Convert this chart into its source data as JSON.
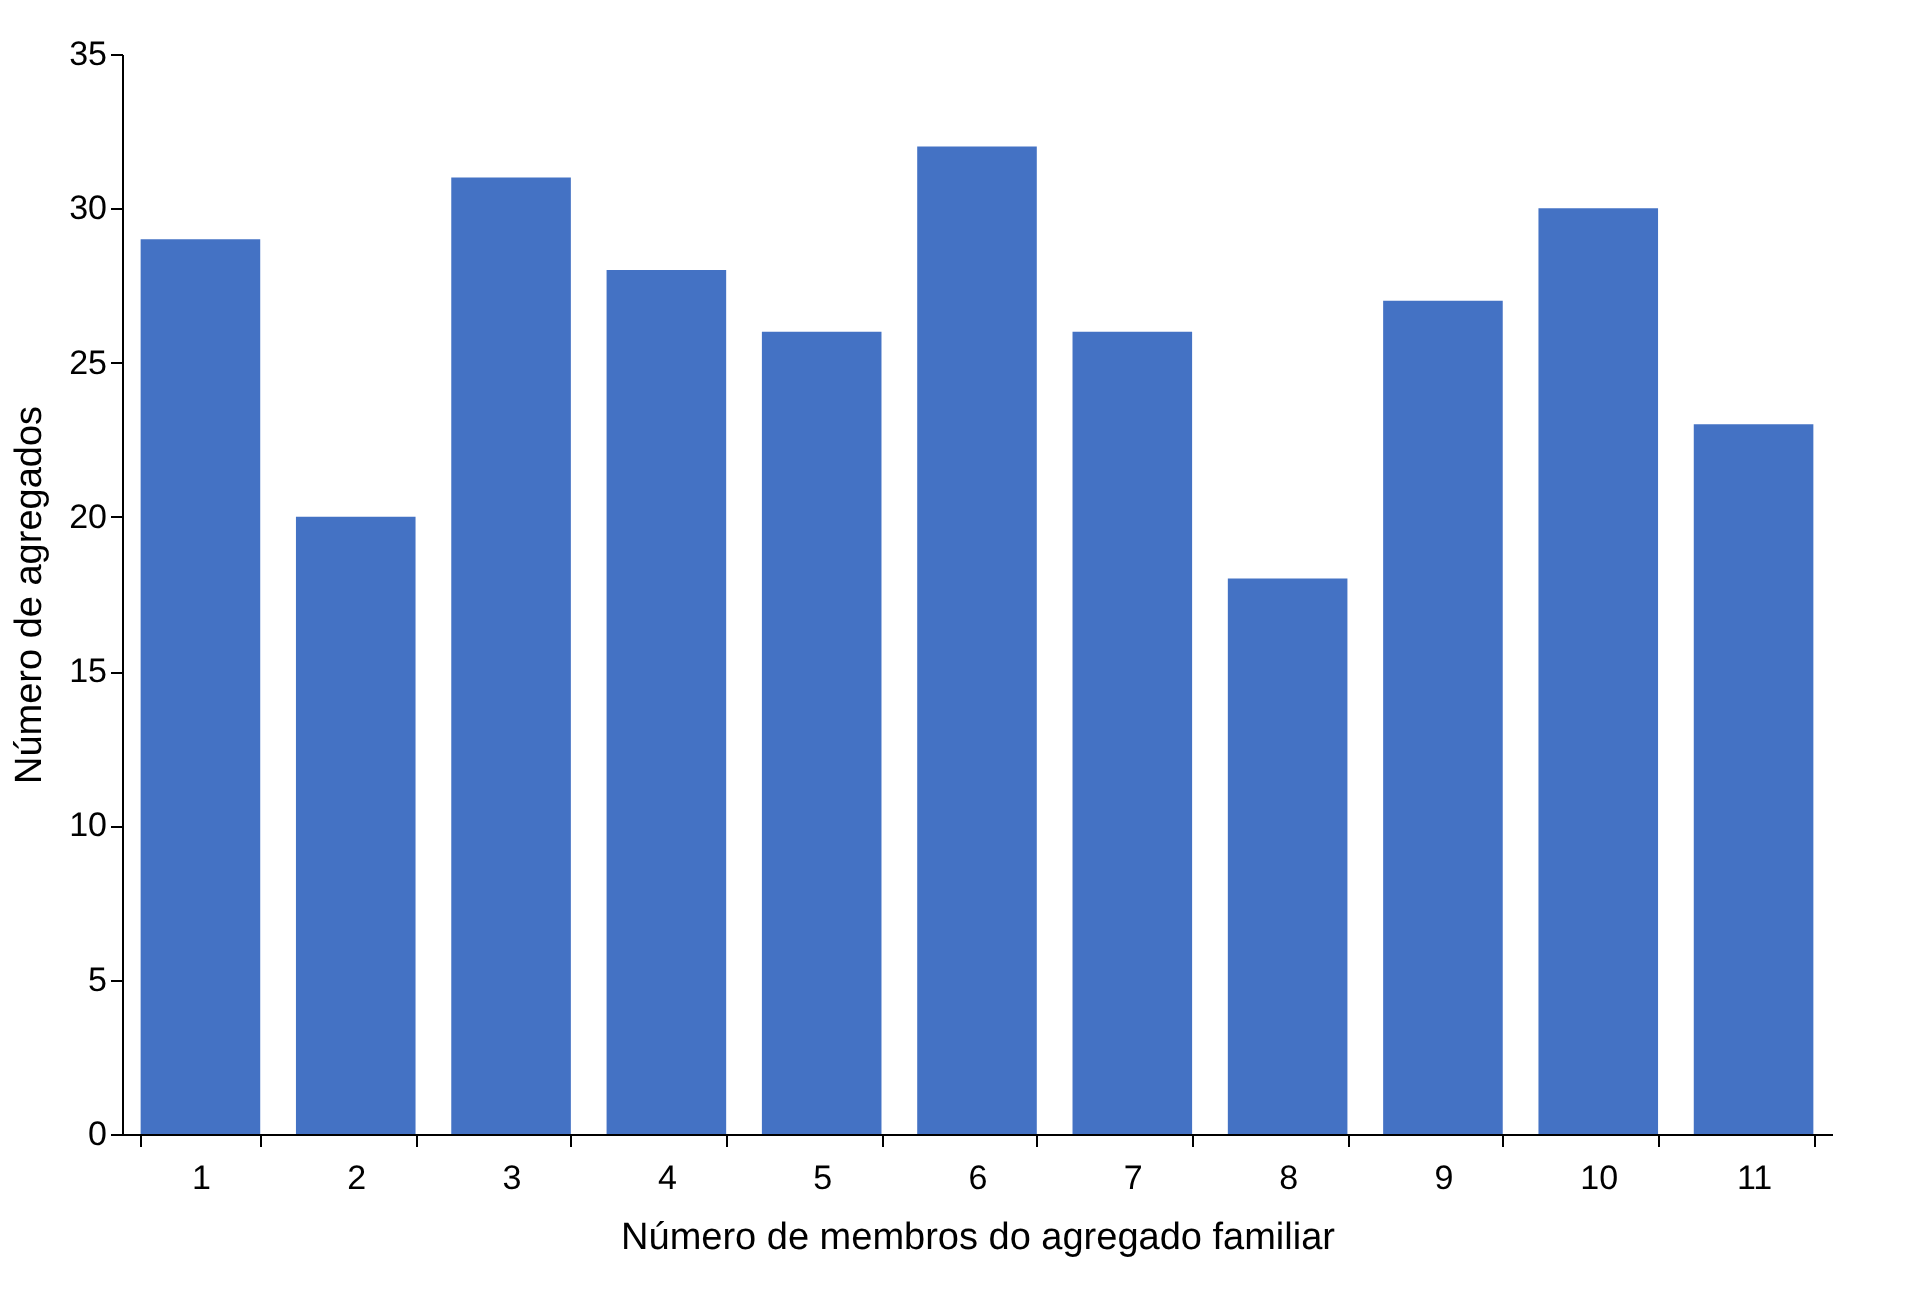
{
  "chart_data": {
    "type": "bar",
    "xlabel": "Número de membros do agregado familiar",
    "ylabel": "Número de agregados",
    "categories": [
      "1",
      "2",
      "3",
      "4",
      "5",
      "6",
      "7",
      "8",
      "9",
      "10",
      "11"
    ],
    "values": [
      29,
      20,
      31,
      28,
      26,
      32,
      26,
      18,
      27,
      30,
      23
    ],
    "color": "#4472c4",
    "ylim": [
      0,
      35
    ],
    "yticks": [
      0,
      5,
      10,
      15,
      20,
      25,
      30,
      35
    ],
    "grid": false
  }
}
